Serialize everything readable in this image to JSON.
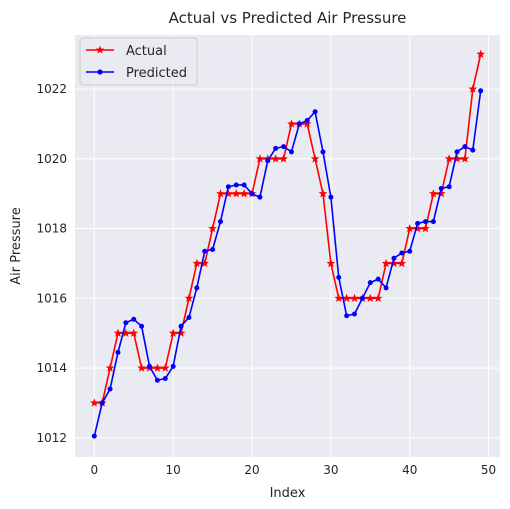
{
  "chart_data": {
    "type": "line",
    "title": "Actual vs Predicted Air Pressure",
    "xlabel": "Index",
    "ylabel": "Air Pressure",
    "xlim": [
      -2.45,
      51.45
    ],
    "ylim": [
      1011.45,
      1023.55
    ],
    "xticks": [
      0,
      10,
      20,
      30,
      40,
      50
    ],
    "yticks": [
      1012,
      1014,
      1016,
      1018,
      1020,
      1022
    ],
    "grid": true,
    "legend_position": "top-left",
    "background_color": "#eaeaf2",
    "series": [
      {
        "name": "Actual",
        "color": "#ff0000",
        "marker": "star",
        "x": [
          0,
          1,
          2,
          3,
          4,
          5,
          6,
          7,
          8,
          9,
          10,
          11,
          12,
          13,
          14,
          15,
          16,
          17,
          18,
          19,
          20,
          21,
          22,
          23,
          24,
          25,
          26,
          27,
          28,
          29,
          30,
          31,
          32,
          33,
          34,
          35,
          36,
          37,
          38,
          39,
          40,
          41,
          42,
          43,
          44,
          45,
          46,
          47,
          48,
          49
        ],
        "values": [
          1013,
          1013,
          1014,
          1015,
          1015,
          1015,
          1014,
          1014,
          1014,
          1014,
          1015,
          1015,
          1016,
          1017,
          1017,
          1018,
          1019,
          1019,
          1019,
          1019,
          1019,
          1020,
          1020,
          1020,
          1020,
          1021,
          1021,
          1021,
          1020,
          1019,
          1017,
          1016,
          1016,
          1016,
          1016,
          1016,
          1016,
          1017,
          1017,
          1017,
          1018,
          1018,
          1018,
          1019,
          1019,
          1020,
          1020,
          1020,
          1022,
          1023
        ]
      },
      {
        "name": "Predicted",
        "color": "#0000ff",
        "marker": "dot",
        "x": [
          0,
          1,
          2,
          3,
          4,
          5,
          6,
          7,
          8,
          9,
          10,
          11,
          12,
          13,
          14,
          15,
          16,
          17,
          18,
          19,
          20,
          21,
          22,
          23,
          24,
          25,
          26,
          27,
          28,
          29,
          30,
          31,
          32,
          33,
          34,
          35,
          36,
          37,
          38,
          39,
          40,
          41,
          42,
          43,
          44,
          45,
          46,
          47,
          48,
          49
        ],
        "values": [
          1012.05,
          1013.0,
          1013.4,
          1014.45,
          1015.3,
          1015.4,
          1015.2,
          1014.05,
          1013.65,
          1013.7,
          1014.05,
          1015.2,
          1015.45,
          1016.3,
          1017.35,
          1017.4,
          1018.2,
          1019.2,
          1019.25,
          1019.25,
          1019.0,
          1018.9,
          1019.95,
          1020.3,
          1020.35,
          1020.2,
          1021.0,
          1021.1,
          1021.35,
          1020.2,
          1018.9,
          1016.6,
          1015.5,
          1015.55,
          1016.0,
          1016.45,
          1016.55,
          1016.3,
          1017.15,
          1017.3,
          1017.35,
          1018.15,
          1018.2,
          1018.2,
          1019.15,
          1019.2,
          1020.2,
          1020.35,
          1020.25,
          1021.95
        ]
      }
    ]
  }
}
